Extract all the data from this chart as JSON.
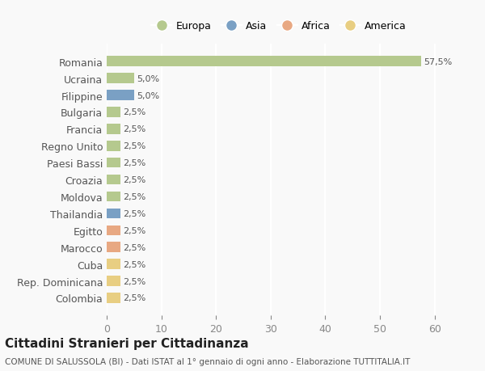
{
  "countries": [
    "Romania",
    "Ucraina",
    "Filippine",
    "Bulgaria",
    "Francia",
    "Regno Unito",
    "Paesi Bassi",
    "Croazia",
    "Moldova",
    "Thailandia",
    "Egitto",
    "Marocco",
    "Cuba",
    "Rep. Dominicana",
    "Colombia"
  ],
  "values": [
    57.5,
    5.0,
    5.0,
    2.5,
    2.5,
    2.5,
    2.5,
    2.5,
    2.5,
    2.5,
    2.5,
    2.5,
    2.5,
    2.5,
    2.5
  ],
  "continents": [
    "Europa",
    "Europa",
    "Asia",
    "Europa",
    "Europa",
    "Europa",
    "Europa",
    "Europa",
    "Europa",
    "Asia",
    "Africa",
    "Africa",
    "America",
    "America",
    "America"
  ],
  "continent_colors": {
    "Europa": "#b5c98e",
    "Asia": "#7aa0c4",
    "Africa": "#e8a882",
    "America": "#e8ce82"
  },
  "legend_order": [
    "Europa",
    "Asia",
    "Africa",
    "America"
  ],
  "title": "Cittadini Stranieri per Cittadinanza",
  "subtitle": "COMUNE DI SALUSSOLA (BI) - Dati ISTAT al 1° gennaio di ogni anno - Elaborazione TUTTITALIA.IT",
  "xlim": [
    0,
    63
  ],
  "xticks": [
    0,
    10,
    20,
    30,
    40,
    50,
    60
  ],
  "bg_color": "#f9f9f9",
  "grid_color": "#ffffff",
  "bar_height": 0.6
}
